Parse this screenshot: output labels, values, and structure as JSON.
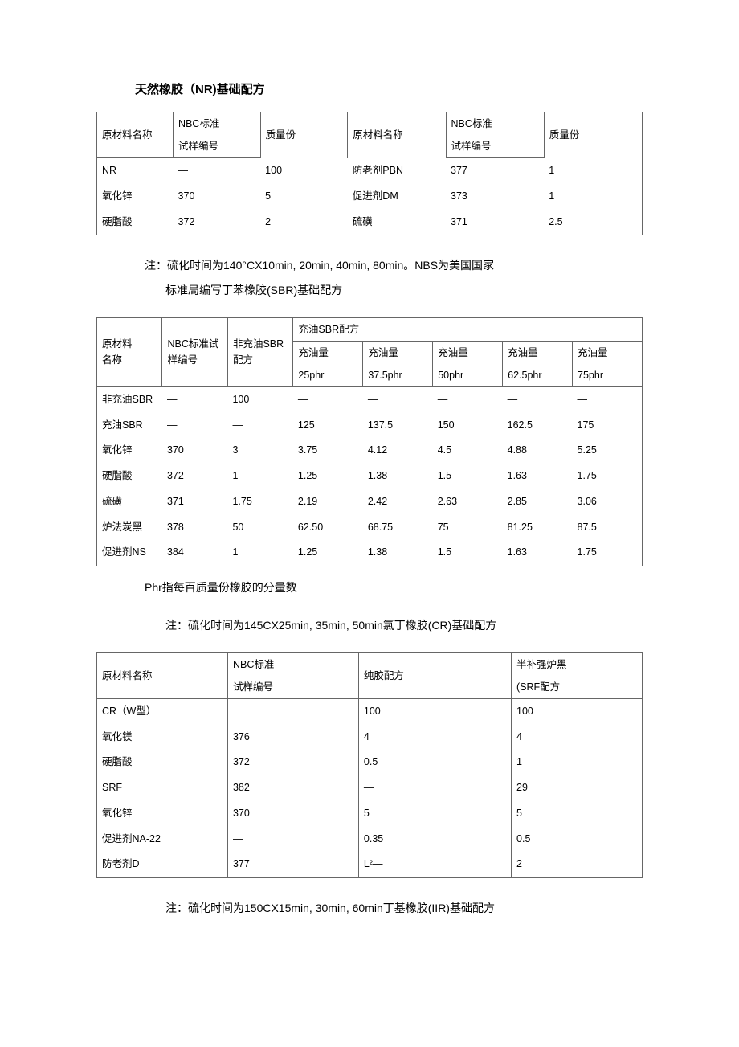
{
  "section1": {
    "title": "天然橡胶（NR)基础配方",
    "headers": {
      "col1": "原材料名称",
      "col2a": "NBC标准",
      "col2b": "试样编号",
      "col3": "质量份",
      "col4": "原材料名称",
      "col5a": "NBC标准",
      "col5b": "试样编号",
      "col6": "质量份"
    },
    "rows": [
      [
        "NR",
        "—",
        "100",
        "防老剂PBN",
        "377",
        "1"
      ],
      [
        "氧化锌",
        "370",
        "5",
        "促进剂DM",
        "373",
        "1"
      ],
      [
        "硬脂酸",
        "372",
        "2",
        "硫磺",
        "371",
        "2.5"
      ]
    ],
    "note_line1": "注：硫化时间为140°CX10min, 20min, 40min, 80min。NBS为美国国家",
    "note_line2": "标准局编写丁苯橡胶(SBR)基础配方"
  },
  "section2": {
    "headers": {
      "c1a": "原材料",
      "c1b": "名称",
      "c2a": "NBC标准试",
      "c2b": "样编号",
      "c3a": "非充油SBR",
      "c3b": "配方",
      "group": "充油SBR配方",
      "g1a": "充油量",
      "g1b": "25phr",
      "g2a": "充油量",
      "g2b": "37.5phr",
      "g3a": "充油量",
      "g3b": "50phr",
      "g4a": "充油量",
      "g4b": "62.5phr",
      "g5a": "充油量",
      "g5b": "75phr"
    },
    "rows": [
      [
        "非充油SBR",
        "—",
        "100",
        "—",
        "—",
        "—",
        "—",
        "—"
      ],
      [
        "充油SBR",
        "—",
        "—",
        "125",
        "137.5",
        "150",
        "162.5",
        "175"
      ],
      [
        "氧化锌",
        "370",
        "3",
        "3.75",
        "4.12",
        "4.5",
        "4.88",
        "5.25"
      ],
      [
        "硬脂酸",
        "372",
        "1",
        "1.25",
        "1.38",
        "1.5",
        "1.63",
        "1.75"
      ],
      [
        "硫磺",
        "371",
        "1.75",
        "2.19",
        "2.42",
        "2.63",
        "2.85",
        "3.06"
      ],
      [
        "炉法炭黑",
        "378",
        "50",
        "62.50",
        "68.75",
        "75",
        "81.25",
        "87.5"
      ],
      [
        "促进剂NS",
        "384",
        "1",
        "1.25",
        "1.38",
        "1.5",
        "1.63",
        "1.75"
      ]
    ],
    "subnote": "Phr指每百质量份橡胶的分量数",
    "note": "注：硫化时间为145CX25min, 35min, 50min氯丁橡胶(CR)基础配方"
  },
  "section3": {
    "headers": {
      "c1": "原材料名称",
      "c2a": "NBC标准",
      "c2b": "试样编号",
      "c3": "纯胶配方",
      "c4a": "半补强炉黑",
      "c4b": "(SRF配方"
    },
    "rows": [
      [
        "CR（W型）",
        "",
        "100",
        "100"
      ],
      [
        "氧化镁",
        "376",
        "4",
        "4"
      ],
      [
        "硬脂酸",
        "372",
        "0.5",
        "1"
      ],
      [
        "SRF",
        "382",
        "—",
        "29"
      ],
      [
        "氧化锌",
        "370",
        "5",
        "5"
      ],
      [
        "促进剂NA-22",
        "—",
        "0.35",
        "0.5"
      ],
      [
        "防老剂D",
        "377",
        "L²—",
        "2"
      ]
    ],
    "note": "注：硫化时间为150CX15min, 30min, 60min丁基橡胶(IIR)基础配方"
  }
}
